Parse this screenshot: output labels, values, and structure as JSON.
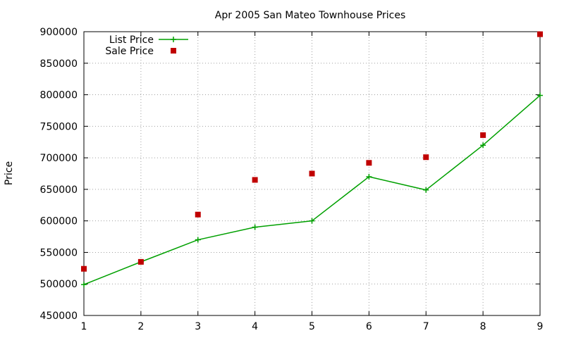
{
  "chart_data": {
    "type": "line",
    "title": "Apr 2005 San Mateo Townhouse Prices",
    "xlabel": "",
    "ylabel": "Price",
    "x": [
      1,
      2,
      3,
      4,
      5,
      6,
      7,
      8,
      9
    ],
    "xlim": [
      1,
      9
    ],
    "ylim": [
      450000,
      900000
    ],
    "xticks": [
      1,
      2,
      3,
      4,
      5,
      6,
      7,
      8,
      9
    ],
    "yticks": [
      450000,
      500000,
      550000,
      600000,
      650000,
      700000,
      750000,
      800000,
      850000,
      900000
    ],
    "grid": true,
    "legend_position": "top-left",
    "series": [
      {
        "name": "List Price",
        "style": "lines+crosses",
        "color": "#00a000",
        "values": [
          499000,
          535000,
          570000,
          590000,
          600000,
          670000,
          649000,
          720000,
          799000
        ]
      },
      {
        "name": "Sale Price",
        "style": "squares",
        "color": "#c00000",
        "values": [
          524000,
          535000,
          610000,
          665000,
          675000,
          692000,
          701000,
          736000,
          896000
        ]
      }
    ]
  }
}
